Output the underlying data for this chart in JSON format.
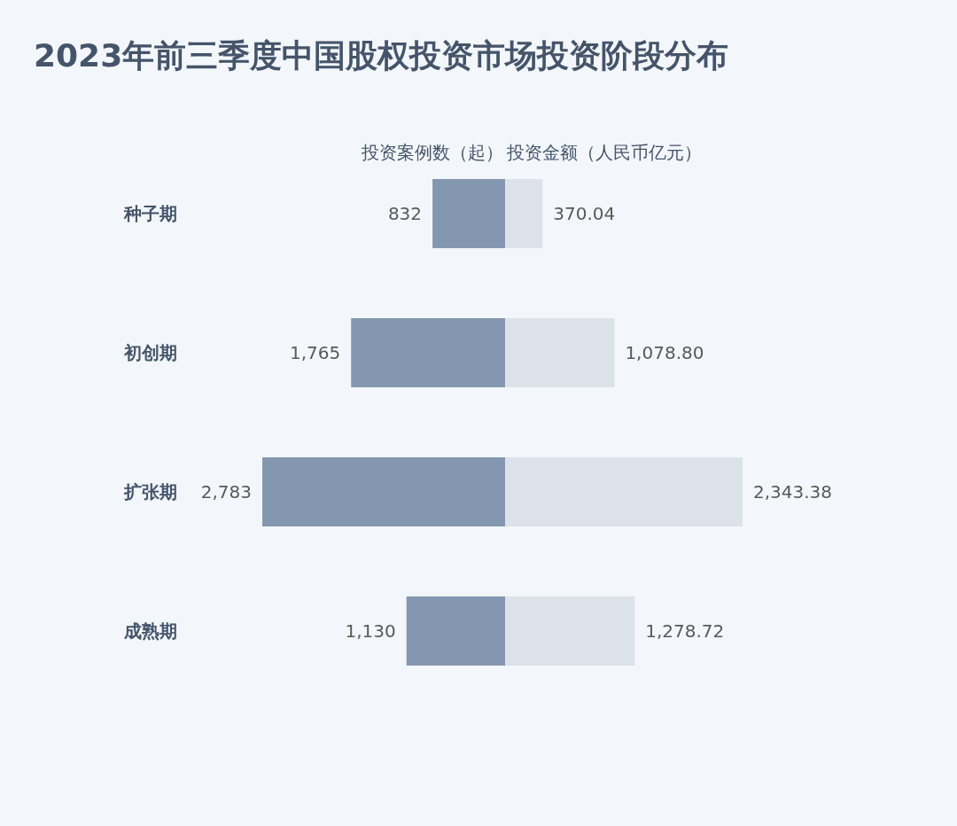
{
  "chart_data": [
    {
      "type": "bar",
      "orientation": "horizontal",
      "title": "2023年前三季度中国股权投资市场投资阶段分布",
      "legend": "top",
      "tick_labels": "y",
      "categories": [
        "种子期",
        "初创期",
        "扩张期",
        "成熟期"
      ],
      "series": [
        {
          "name": "投资案例数（起）",
          "color": "#8497b0",
          "values": [
            832,
            1765,
            2783,
            1130
          ],
          "value_labels": [
            "832",
            "1,765",
            "2,783",
            "1,130"
          ]
        }
      ]
    },
    {
      "type": "bar",
      "orientation": "horizontal",
      "legend": "top",
      "tick_labels": false,
      "categories": [
        null,
        null,
        null,
        null
      ],
      "series": [
        {
          "name": "投资金额（人民币亿元）",
          "color": "#dde1ea",
          "values": [
            370.04,
            1078.8,
            2343.38,
            1278.72
          ],
          "value_labels": [
            "370.04",
            "1,078.80",
            "2,343.38",
            "1,278.72"
          ]
        }
      ]
    }
  ]
}
